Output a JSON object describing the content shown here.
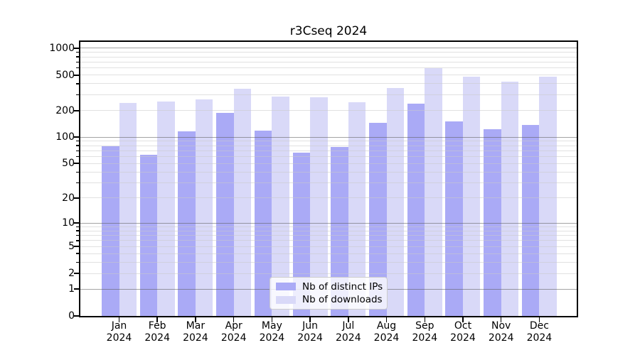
{
  "title": "r3Cseq 2024",
  "chart_data": {
    "type": "bar",
    "title": "r3Cseq 2024",
    "categories": [
      "Jan 2024",
      "Feb 2024",
      "Mar 2024",
      "Apr 2024",
      "May 2024",
      "Jun 2024",
      "Jul 2024",
      "Aug 2024",
      "Sep 2024",
      "Oct 2024",
      "Nov 2024",
      "Dec 2024"
    ],
    "series": [
      {
        "name": "Nb of distinct IPs",
        "color": "#aaaaf6",
        "values": [
          79,
          63,
          117,
          189,
          118,
          67,
          78,
          144,
          240,
          150,
          122,
          137
        ]
      },
      {
        "name": "Nb of downloads",
        "color": "#d9d9f8",
        "values": [
          242,
          250,
          264,
          350,
          288,
          280,
          247,
          355,
          592,
          481,
          423,
          475
        ]
      }
    ],
    "y_axis": {
      "scale": "log1p",
      "tick_labels": [
        0,
        1,
        2,
        5,
        10,
        20,
        50,
        100,
        200,
        500,
        1000
      ],
      "minor_ticks": [
        3,
        4,
        6,
        7,
        8,
        9,
        30,
        40,
        60,
        70,
        80,
        90,
        300,
        400,
        600,
        700,
        800,
        900
      ],
      "major_gridlines": [
        1,
        10,
        100,
        1000
      ],
      "minor_gridlines": [
        2,
        3,
        4,
        5,
        6,
        7,
        8,
        9,
        20,
        30,
        40,
        50,
        60,
        70,
        80,
        90,
        200,
        300,
        400,
        500,
        600,
        700,
        800,
        900
      ],
      "range": [
        0,
        1000
      ],
      "grid": "on"
    },
    "legend_position": "lower center"
  },
  "colors": {
    "distinct_ips": "#aaaaf6",
    "downloads": "#d9d9f8",
    "frame": "#000000",
    "major_grid": "#8c8c8c",
    "minor_grid": "#dddddd",
    "legend_border": "#cccccc"
  }
}
